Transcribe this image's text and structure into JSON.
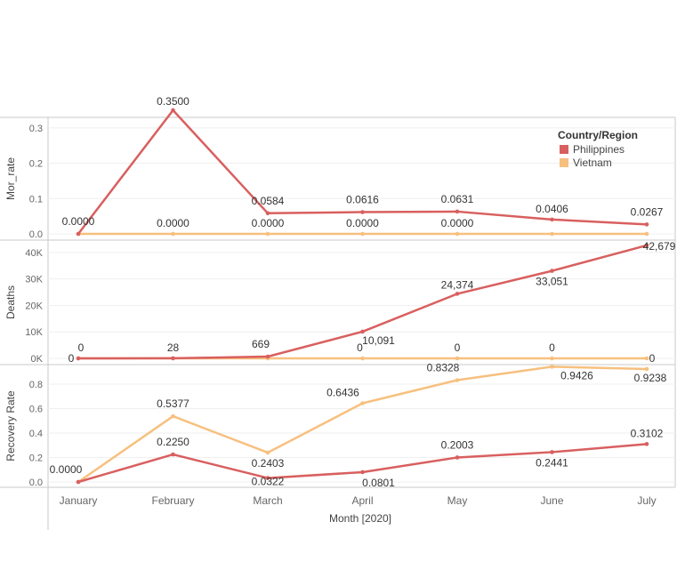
{
  "chart_data": {
    "type": "line",
    "categories": [
      "January",
      "February",
      "March",
      "April",
      "May",
      "June",
      "July"
    ],
    "xlabel": "Month [2020]",
    "legend": {
      "title": "Country/Region",
      "placement": "top-right",
      "items": [
        "Philippines",
        "Vietnam"
      ]
    },
    "colors": {
      "Philippines": "#d95f5f",
      "Vietnam": "#f7c07f"
    },
    "panels": [
      {
        "ylabel": "Mor_rate",
        "ylim": [
          0,
          0.36
        ],
        "yticks": [
          0,
          0.1,
          0.2,
          0.3
        ],
        "ytick_labels": [
          "0.0",
          "0.1",
          "0.2",
          "0.3"
        ],
        "series": [
          {
            "name": "Philippines",
            "values": [
              0,
              0.35,
              0.0584,
              0.0616,
              0.0631,
              0.0406,
              0.0267
            ]
          },
          {
            "name": "Vietnam",
            "values": [
              0,
              0,
              0,
              0,
              0,
              0,
              0
            ]
          }
        ],
        "labels": [
          {
            "text": "0.0000",
            "cat": 0,
            "series": "Philippines",
            "dx": 0,
            "dy": -10
          },
          {
            "text": "0.3500",
            "cat": 1,
            "series": "Philippines",
            "dx": 0,
            "dy": -6
          },
          {
            "text": "0.0584",
            "cat": 2,
            "series": "Philippines",
            "dx": 0,
            "dy": -10
          },
          {
            "text": "0.0616",
            "cat": 3,
            "series": "Philippines",
            "dx": 0,
            "dy": -10
          },
          {
            "text": "0.0631",
            "cat": 4,
            "series": "Philippines",
            "dx": 0,
            "dy": -10
          },
          {
            "text": "0.0406",
            "cat": 5,
            "series": "Philippines",
            "dx": 0,
            "dy": -8
          },
          {
            "text": "0.0267",
            "cat": 6,
            "series": "Philippines",
            "dx": 0,
            "dy": -10
          },
          {
            "text": "0.0000",
            "cat": 1,
            "series": "Vietnam",
            "dx": 0,
            "dy": -8
          },
          {
            "text": "0.0000",
            "cat": 2,
            "series": "Vietnam",
            "dx": 0,
            "dy": -8
          },
          {
            "text": "0.0000",
            "cat": 3,
            "series": "Vietnam",
            "dx": 0,
            "dy": -8
          },
          {
            "text": "0.0000",
            "cat": 4,
            "series": "Vietnam",
            "dx": 0,
            "dy": -8
          }
        ]
      },
      {
        "ylabel": "Deaths",
        "ylim": [
          0,
          44000
        ],
        "yticks": [
          0,
          10000,
          20000,
          30000,
          40000
        ],
        "ytick_labels": [
          "0K",
          "10K",
          "20K",
          "30K",
          "40K"
        ],
        "series": [
          {
            "name": "Philippines",
            "values": [
              0,
              28,
              669,
              10091,
              24374,
              33051,
              42679
            ]
          },
          {
            "name": "Vietnam",
            "values": [
              0,
              0,
              0,
              0,
              0,
              0,
              0
            ]
          }
        ],
        "labels": [
          {
            "text": "0",
            "cat": 0,
            "series": "Philippines",
            "dx": -8,
            "dy": 4
          },
          {
            "text": "0",
            "cat": 0,
            "series": "Vietnam",
            "dx": 3,
            "dy": -8
          },
          {
            "text": "28",
            "cat": 1,
            "series": "Philippines",
            "dx": 0,
            "dy": -8
          },
          {
            "text": "669",
            "cat": 2,
            "series": "Philippines",
            "dx": -8,
            "dy": -10
          },
          {
            "text": "10,091",
            "cat": 3,
            "series": "Philippines",
            "dx": 18,
            "dy": 14
          },
          {
            "text": "0",
            "cat": 3,
            "series": "Vietnam",
            "dx": -3,
            "dy": -8
          },
          {
            "text": "24,374",
            "cat": 4,
            "series": "Philippines",
            "dx": 0,
            "dy": -6
          },
          {
            "text": "0",
            "cat": 4,
            "series": "Vietnam",
            "dx": 0,
            "dy": -8
          },
          {
            "text": "33,051",
            "cat": 5,
            "series": "Philippines",
            "dx": 0,
            "dy": 16
          },
          {
            "text": "0",
            "cat": 5,
            "series": "Vietnam",
            "dx": 0,
            "dy": -8
          },
          {
            "text": "42,679",
            "cat": 6,
            "series": "Philippines",
            "dx": 14,
            "dy": 5
          },
          {
            "text": "0",
            "cat": 6,
            "series": "Vietnam",
            "dx": 6,
            "dy": 4
          }
        ]
      },
      {
        "ylabel": "Recovery Rate",
        "ylim": [
          0,
          0.96
        ],
        "yticks": [
          0,
          0.2,
          0.4,
          0.6,
          0.8
        ],
        "ytick_labels": [
          "0.0",
          "0.2",
          "0.4",
          "0.6",
          "0.8"
        ],
        "series": [
          {
            "name": "Philippines",
            "values": [
              0,
              0.225,
              0.0322,
              0.0801,
              0.2003,
              0.2441,
              0.3102
            ]
          },
          {
            "name": "Vietnam",
            "values": [
              0,
              0.5377,
              0.2403,
              0.6436,
              0.8328,
              0.9426,
              0.9238
            ]
          }
        ],
        "labels": [
          {
            "text": "0.0000",
            "cat": 0,
            "series": "Philippines",
            "dx": -14,
            "dy": -10
          },
          {
            "text": "0.2250",
            "cat": 1,
            "series": "Philippines",
            "dx": 0,
            "dy": -10
          },
          {
            "text": "0.0322",
            "cat": 2,
            "series": "Philippines",
            "dx": 0,
            "dy": 8
          },
          {
            "text": "0.0801",
            "cat": 3,
            "series": "Philippines",
            "dx": 18,
            "dy": 16
          },
          {
            "text": "0.2003",
            "cat": 4,
            "series": "Philippines",
            "dx": 0,
            "dy": -10
          },
          {
            "text": "0.2441",
            "cat": 5,
            "series": "Philippines",
            "dx": 0,
            "dy": 16
          },
          {
            "text": "0.3102",
            "cat": 6,
            "series": "Philippines",
            "dx": 0,
            "dy": -8
          },
          {
            "text": "0.5377",
            "cat": 1,
            "series": "Vietnam",
            "dx": 0,
            "dy": -10
          },
          {
            "text": "0.2403",
            "cat": 2,
            "series": "Vietnam",
            "dx": 0,
            "dy": 16
          },
          {
            "text": "0.6436",
            "cat": 3,
            "series": "Vietnam",
            "dx": -22,
            "dy": -8
          },
          {
            "text": "0.8328",
            "cat": 4,
            "series": "Vietnam",
            "dx": -16,
            "dy": -10
          },
          {
            "text": "0.9426",
            "cat": 5,
            "series": "Vietnam",
            "dx": 28,
            "dy": 14
          },
          {
            "text": "0.9238",
            "cat": 6,
            "series": "Vietnam",
            "dx": 4,
            "dy": 14
          }
        ]
      }
    ]
  }
}
